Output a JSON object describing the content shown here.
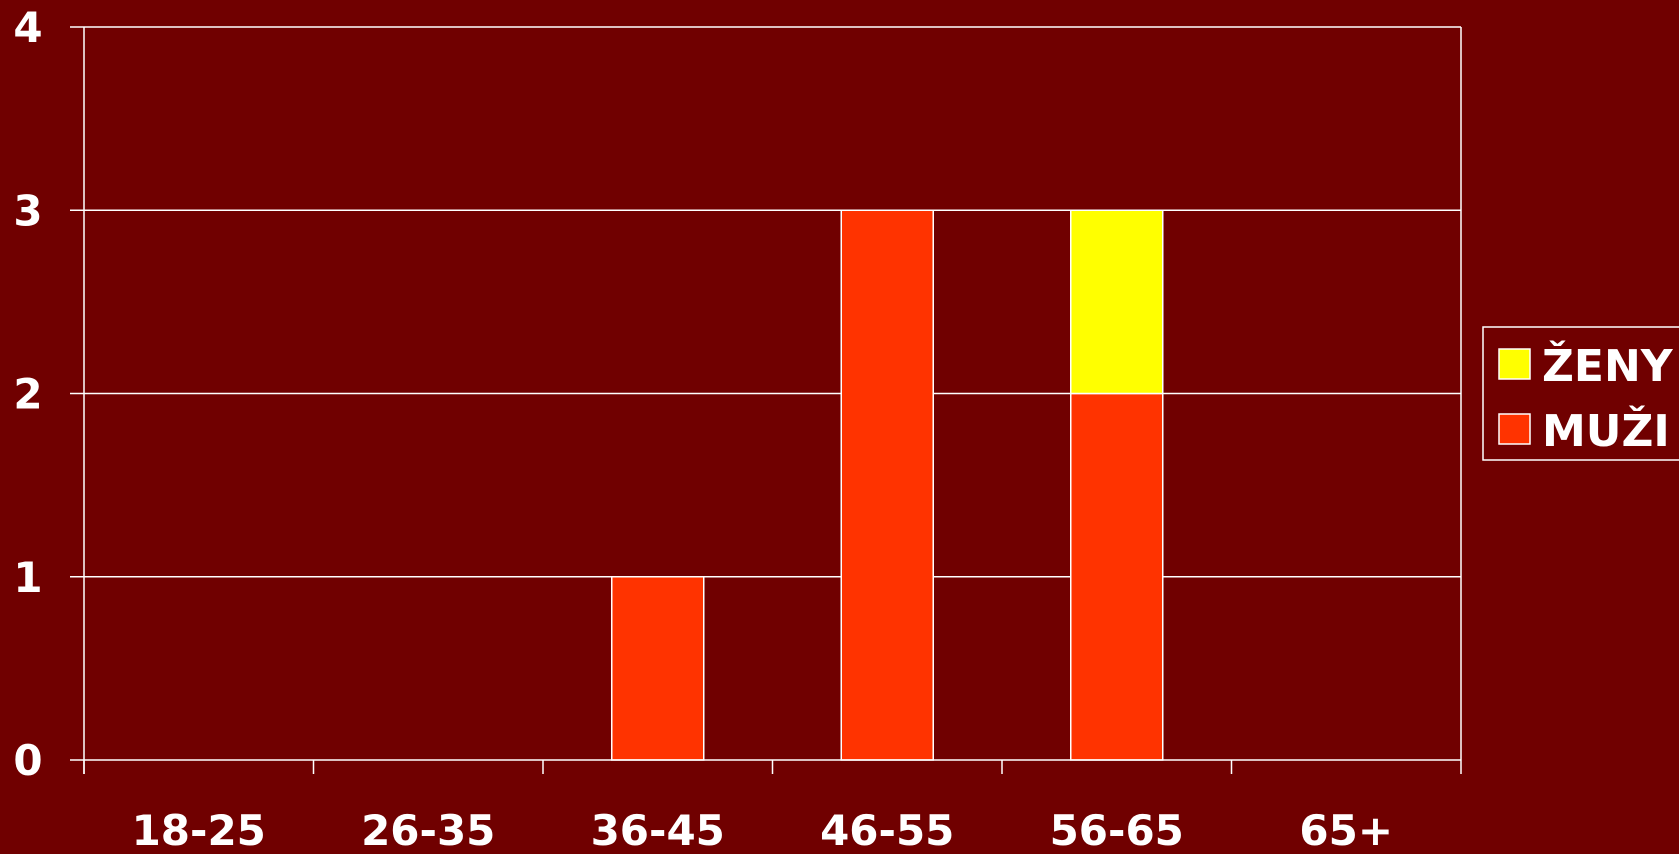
{
  "colors": {
    "background": "#700000",
    "grid": "#ffffff",
    "muzi": "#ff3300",
    "zeny": "#ffff00"
  },
  "chart_data": {
    "type": "bar",
    "stacked": true,
    "categories": [
      "18-25",
      "26-35",
      "36-45",
      "46-55",
      "56-65",
      "65+"
    ],
    "series": [
      {
        "name": "MUŽI",
        "values": [
          0,
          0,
          1,
          3,
          2,
          0
        ]
      },
      {
        "name": "ŽENY",
        "values": [
          0,
          0,
          0,
          0,
          1,
          0
        ]
      }
    ],
    "y_ticks": [
      "0",
      "1",
      "2",
      "3",
      "4"
    ],
    "ylim": [
      0,
      4
    ],
    "grid": true,
    "legend_position": "right",
    "legend_order": [
      "ŽENY",
      "MUŽI"
    ],
    "title": "",
    "xlabel": "",
    "ylabel": ""
  }
}
